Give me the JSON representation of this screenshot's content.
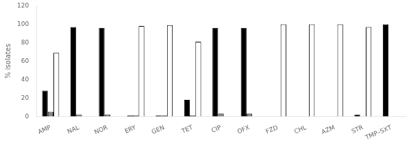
{
  "chart_data": {
    "type": "bar",
    "categories": [
      "AMP",
      "NAL",
      "NOR",
      "ERY",
      "GEN",
      "TET",
      "CIP",
      "OFX",
      "FZD",
      "CHL",
      "AZM",
      "STR",
      "TMP–SXT"
    ],
    "series": [
      {
        "color": "#000000",
        "values": [
          28,
          97,
          96,
          1,
          1,
          18,
          96,
          96,
          0,
          0,
          0,
          2,
          100
        ]
      },
      {
        "color": "#888888",
        "values": [
          5,
          2,
          2,
          1,
          1,
          1,
          3,
          3,
          0,
          0,
          0,
          0,
          0
        ]
      },
      {
        "color": "#ffffff",
        "values": [
          69,
          0,
          0,
          98,
          99,
          81,
          0,
          0,
          100,
          100,
          100,
          97,
          0
        ]
      }
    ],
    "ylabel": "% isolates",
    "ylim": [
      0,
      120
    ],
    "yticks": [
      0,
      20,
      40,
      60,
      80,
      100,
      120
    ],
    "grid": false
  }
}
